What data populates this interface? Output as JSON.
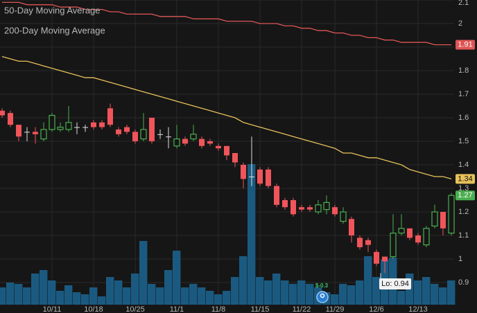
{
  "chart_data": {
    "type": "candlestick",
    "categories": [
      null,
      null,
      null,
      null,
      null,
      null,
      "10/11",
      null,
      null,
      null,
      null,
      "10/18",
      null,
      null,
      null,
      null,
      "10/25",
      null,
      null,
      null,
      null,
      "11/1",
      null,
      null,
      null,
      null,
      "11/8",
      null,
      null,
      null,
      null,
      "11/15",
      null,
      null,
      null,
      null,
      "11/22",
      null,
      null,
      null,
      "11/29",
      null,
      null,
      null,
      null,
      "12/6",
      null,
      null,
      null,
      null,
      "12/13",
      null,
      null,
      null,
      null
    ],
    "open": [
      1.63,
      1.62,
      1.57,
      1.54,
      1.54,
      1.51,
      1.55,
      1.55,
      1.55,
      1.56,
      1.56,
      1.58,
      1.58,
      1.64,
      1.55,
      1.56,
      1.54,
      1.51,
      1.6,
      1.53,
      1.52,
      1.48,
      1.51,
      1.51,
      1.51,
      1.5,
      1.48,
      1.48,
      1.45,
      1.4,
      1.35,
      1.38,
      1.38,
      1.31,
      1.25,
      1.25,
      1.22,
      1.22,
      1.2,
      1.21,
      1.22,
      1.16,
      1.17,
      1.09,
      1.08,
      1.03,
      1.01,
      1.01,
      1.11,
      1.13,
      1.1,
      1.06,
      1.14,
      1.2,
      1.11
    ],
    "high": [
      1.64,
      1.63,
      1.57,
      1.56,
      1.56,
      1.58,
      1.62,
      1.58,
      1.65,
      1.58,
      1.57,
      1.59,
      1.59,
      1.66,
      1.56,
      1.57,
      1.55,
      1.62,
      1.6,
      1.55,
      1.56,
      1.57,
      1.52,
      1.57,
      1.52,
      1.51,
      1.49,
      1.48,
      1.45,
      1.41,
      1.52,
      1.39,
      1.39,
      1.32,
      1.26,
      1.26,
      1.23,
      1.23,
      1.25,
      1.27,
      1.23,
      1.22,
      1.18,
      1.1,
      1.09,
      1.04,
      1.01,
      1.19,
      1.19,
      1.13,
      1.11,
      1.14,
      1.23,
      1.2,
      1.28
    ],
    "low": [
      1.6,
      1.56,
      1.5,
      1.5,
      1.49,
      1.5,
      1.54,
      1.54,
      1.54,
      1.53,
      1.54,
      1.55,
      1.55,
      1.56,
      1.52,
      1.53,
      1.49,
      1.5,
      1.49,
      1.51,
      1.47,
      1.47,
      1.48,
      1.5,
      1.47,
      1.48,
      1.46,
      1.42,
      1.39,
      1.3,
      1.31,
      1.31,
      1.3,
      1.22,
      1.21,
      1.18,
      1.2,
      1.2,
      1.19,
      1.19,
      1.18,
      1.15,
      1.07,
      1.04,
      1.03,
      0.97,
      0.94,
      1.0,
      1.1,
      1.08,
      1.06,
      1.05,
      1.13,
      1.1,
      1.1
    ],
    "close": [
      1.61,
      1.57,
      1.52,
      1.54,
      1.53,
      1.55,
      1.61,
      1.56,
      1.58,
      1.56,
      1.56,
      1.56,
      1.56,
      1.57,
      1.53,
      1.54,
      1.5,
      1.55,
      1.5,
      1.53,
      1.52,
      1.51,
      1.49,
      1.53,
      1.48,
      1.49,
      1.47,
      1.44,
      1.41,
      1.34,
      1.35,
      1.32,
      1.31,
      1.23,
      1.22,
      1.19,
      1.21,
      1.21,
      1.23,
      1.24,
      1.19,
      1.2,
      1.1,
      1.05,
      1.06,
      0.98,
      0.99,
      1.11,
      1.13,
      1.09,
      1.07,
      1.13,
      1.2,
      1.13,
      1.27
    ],
    "up_color": "#4caf50",
    "down_color": "#f0555b",
    "flat_color": "#e0e0e0",
    "volume": {
      "color": "#1b5a80",
      "axis": "y2",
      "values": [
        25,
        32,
        30,
        25,
        45,
        50,
        35,
        20,
        28,
        18,
        15,
        25,
        12,
        40,
        35,
        25,
        45,
        92,
        30,
        25,
        50,
        78,
        25,
        30,
        25,
        20,
        15,
        20,
        40,
        70,
        203,
        40,
        35,
        45,
        35,
        30,
        35,
        30,
        25,
        18,
        15,
        30,
        28,
        35,
        70,
        40,
        65,
        68,
        20,
        45,
        35,
        40,
        30,
        25,
        35
      ]
    },
    "series": [
      {
        "name": "50-Day Moving Average",
        "color": "#e8c15a",
        "values": [
          1.86,
          1.85,
          1.84,
          1.84,
          1.83,
          1.82,
          1.81,
          1.8,
          1.79,
          1.78,
          1.77,
          1.77,
          1.76,
          1.75,
          1.74,
          1.73,
          1.72,
          1.71,
          1.7,
          1.69,
          1.68,
          1.67,
          1.66,
          1.65,
          1.64,
          1.63,
          1.62,
          1.61,
          1.6,
          1.58,
          1.57,
          1.56,
          1.55,
          1.54,
          1.53,
          1.52,
          1.51,
          1.5,
          1.49,
          1.48,
          1.47,
          1.45,
          1.45,
          1.44,
          1.43,
          1.43,
          1.42,
          1.41,
          1.4,
          1.38,
          1.37,
          1.36,
          1.35,
          1.35,
          1.34
        ]
      },
      {
        "name": "200-Day Moving Average",
        "color": "#e05555",
        "values": [
          2.09,
          2.09,
          2.09,
          2.08,
          2.08,
          2.08,
          2.08,
          2.07,
          2.07,
          2.07,
          2.06,
          2.06,
          2.06,
          2.05,
          2.05,
          2.04,
          2.04,
          2.04,
          2.04,
          2.03,
          2.03,
          2.03,
          2.03,
          2.02,
          2.02,
          2.02,
          2.02,
          2.01,
          2.01,
          2.01,
          2.01,
          2.0,
          2.0,
          2.0,
          1.99,
          1.99,
          1.98,
          1.98,
          1.97,
          1.97,
          1.96,
          1.96,
          1.95,
          1.95,
          1.94,
          1.94,
          1.93,
          1.93,
          1.92,
          1.92,
          1.92,
          1.92,
          1.91,
          1.91,
          1.91
        ]
      }
    ],
    "ylim": [
      0.8,
      2.1
    ],
    "yticks": [
      0.9,
      1,
      1.1,
      1.2,
      1.3,
      1.4,
      1.5,
      1.6,
      1.7,
      1.8,
      1.9,
      2,
      2.1
    ],
    "y2lim": [
      0,
      440
    ],
    "grid": true,
    "annotations": [
      {
        "text": "Lo: 0.94"
      },
      {
        "text": "$-0.3"
      }
    ]
  }
}
